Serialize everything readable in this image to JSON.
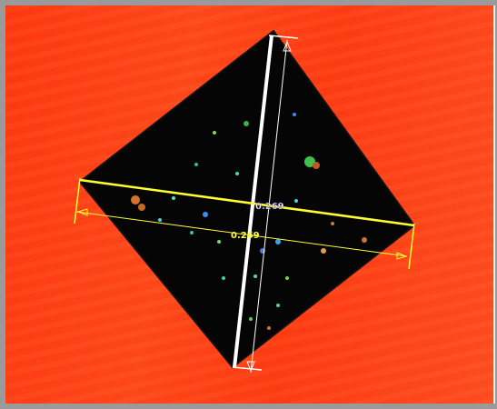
{
  "measurements": {
    "vertical_value": "0.269",
    "horizontal_value": "0.269"
  },
  "colors": {
    "background": "#ff4a1c",
    "indent": "#000000",
    "vertical_line": "#ffffff",
    "horizontal_line": "#ffff33"
  }
}
